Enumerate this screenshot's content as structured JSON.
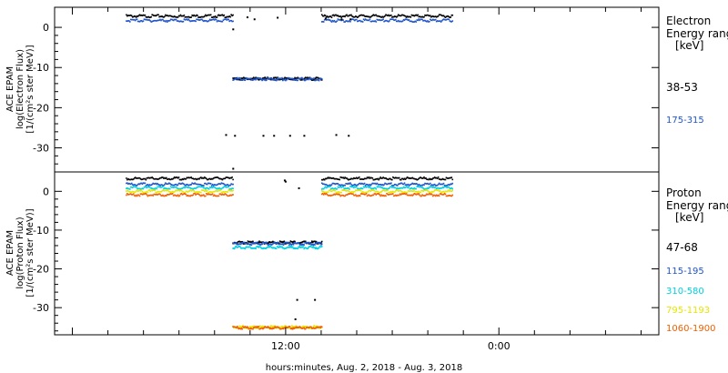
{
  "xaxis": {
    "label": "hours:minutes, Aug.  2, 2018 - Aug.  3, 2018",
    "tick_labels": [
      "12:00",
      "0:00"
    ],
    "tick_hours": [
      12,
      24
    ],
    "range_hours": [
      -1,
      33
    ]
  },
  "chart_data": [
    {
      "type": "scatter",
      "title": "",
      "ylabel_lines": [
        "ACE EPAM",
        "log(Electron Flux)",
        "[1/(cm²s ster MeV)]"
      ],
      "ylim": [
        -36,
        5
      ],
      "yticks": [
        0,
        -10,
        -20,
        -30
      ],
      "legend_title_lines": [
        "Electron",
        "Energy range",
        "[keV]"
      ],
      "series": [
        {
          "name": "38-53",
          "color": "#000000",
          "segments": [
            [
              3,
              9,
              2.8
            ],
            [
              14,
              21.4,
              2.8
            ]
          ],
          "gap": {
            "from": 9,
            "to": 14,
            "value": -12.8
          }
        },
        {
          "name": "175-315",
          "color": "#1f55c8",
          "segments": [
            [
              3,
              9,
              1.7
            ],
            [
              14,
              21.4,
              1.7
            ]
          ],
          "gap": {
            "from": 9,
            "to": 14,
            "value": -12.9
          }
        }
      ],
      "scatter_points": [
        [
          9.8,
          2.5
        ],
        [
          10.2,
          2.0
        ],
        [
          11.5,
          2.4
        ],
        [
          14.2,
          2.2
        ],
        [
          15.1,
          2.0
        ],
        [
          15.6,
          2.0
        ],
        [
          9.0,
          -0.5
        ],
        [
          8.6,
          -26.8
        ],
        [
          9.1,
          -27.0
        ],
        [
          10.7,
          -27.0
        ],
        [
          11.3,
          -27.0
        ],
        [
          12.2,
          -27.0
        ],
        [
          13.0,
          -27.0
        ],
        [
          14.8,
          -26.8
        ],
        [
          15.5,
          -27.0
        ],
        [
          9.0,
          -35.2
        ]
      ]
    },
    {
      "type": "scatter",
      "title": "",
      "ylabel_lines": [
        "ACE EPAM",
        "log(Proton Flux)",
        "[1/(cm²s ster MeV)]"
      ],
      "ylim": [
        -37,
        5
      ],
      "yticks": [
        0,
        -10,
        -20,
        -30
      ],
      "legend_title_lines": [
        "Proton",
        "Energy range",
        "[keV]"
      ],
      "series": [
        {
          "name": "47-68",
          "color": "#000000",
          "segments": [
            [
              3,
              9,
              3.3
            ],
            [
              14,
              21.4,
              3.3
            ]
          ],
          "gap": {
            "from": 9,
            "to": 14,
            "value": -13.2
          }
        },
        {
          "name": "115-195",
          "color": "#1f55c8",
          "segments": [
            [
              3,
              9,
              1.8
            ],
            [
              14,
              21.4,
              1.8
            ]
          ],
          "gap": {
            "from": 9,
            "to": 14,
            "value": -13.5
          }
        },
        {
          "name": "310-580",
          "color": "#00d0e0",
          "segments": [
            [
              3,
              9,
              0.9
            ],
            [
              14,
              21.4,
              0.9
            ]
          ],
          "gap": {
            "from": 9,
            "to": 14,
            "value": -14.5
          }
        },
        {
          "name": "795-1193",
          "color": "#e6e600",
          "segments": [
            [
              3,
              9,
              0.0
            ],
            [
              14,
              21.4,
              0.0
            ]
          ],
          "gap": {
            "from": 9,
            "to": 14,
            "value": -35.0
          }
        },
        {
          "name": "1060-1900",
          "color": "#f06000",
          "segments": [
            [
              3,
              9,
              -0.9
            ],
            [
              14,
              21.4,
              -0.9
            ]
          ],
          "gap": {
            "from": 9,
            "to": 14,
            "value": -35.2
          }
        }
      ],
      "scatter_points": [
        [
          11.9,
          2.8
        ],
        [
          11.95,
          2.5
        ],
        [
          12.6,
          -28.0
        ],
        [
          13.6,
          -28.0
        ],
        [
          12.5,
          -33.0
        ],
        [
          12.7,
          0.8
        ]
      ]
    }
  ]
}
